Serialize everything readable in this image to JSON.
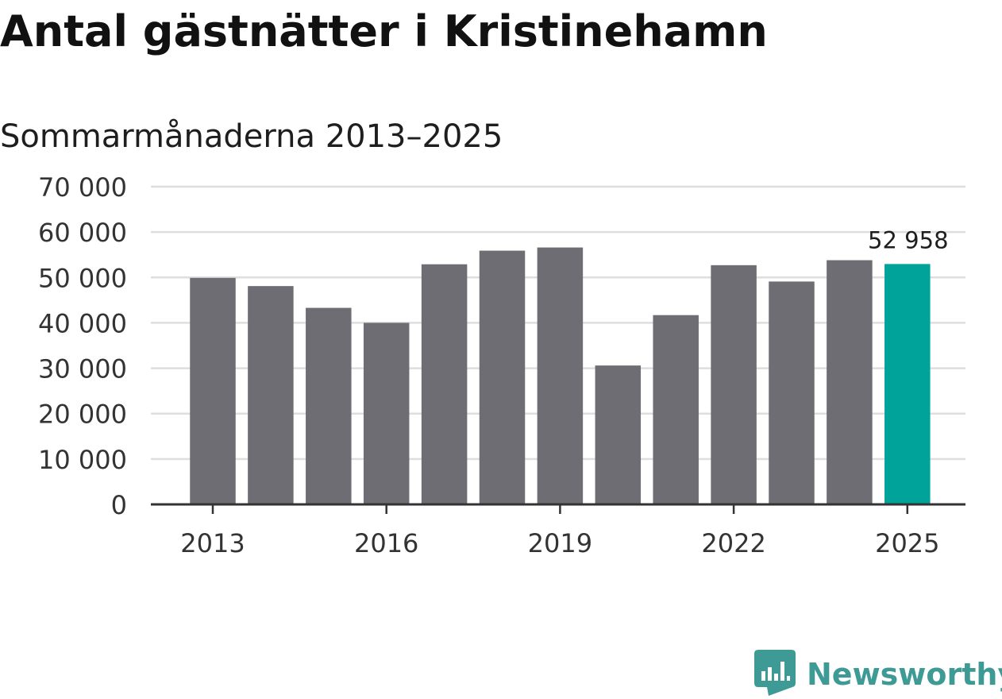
{
  "chart_data": {
    "type": "bar",
    "title": "Antal gästnätter i Kristinehamn",
    "subtitle": "Sommarmånaderna 2013–2025",
    "categories": [
      "2013",
      "2014",
      "2015",
      "2016",
      "2017",
      "2018",
      "2019",
      "2020",
      "2021",
      "2022",
      "2023",
      "2024",
      "2025"
    ],
    "values": [
      49900,
      48100,
      43300,
      40000,
      52900,
      55900,
      56600,
      30600,
      41700,
      52700,
      49100,
      53800,
      52958
    ],
    "x_tick_labels": [
      "2013",
      "2016",
      "2019",
      "2022",
      "2025"
    ],
    "y_tick_labels": [
      "0",
      "10 000",
      "20 000",
      "30 000",
      "40 000",
      "50 000",
      "60 000",
      "70 000"
    ],
    "ylim": [
      0,
      70000
    ],
    "data_labels": [
      {
        "category": "2025",
        "text": "52 958"
      }
    ],
    "grid": true,
    "legend": "none",
    "colors": {
      "bar": "#6e6d74",
      "highlight": "#00a39a",
      "grid": "#dedede",
      "axis": "#333333"
    }
  },
  "brand": {
    "name": "Newsworthy",
    "icon": "newsworthy-logo-icon",
    "color": "#3e9a95"
  }
}
